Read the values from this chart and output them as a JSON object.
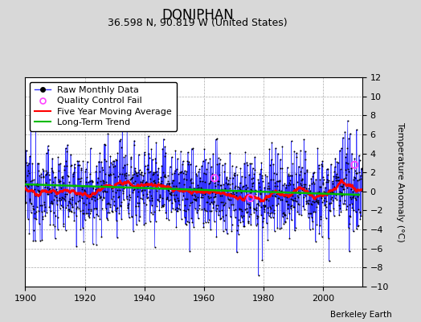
{
  "title": "DONIPHAN",
  "subtitle": "36.598 N, 90.819 W (United States)",
  "ylabel": "Temperature Anomaly (°C)",
  "attribution": "Berkeley Earth",
  "xlim": [
    1900,
    2013
  ],
  "ylim": [
    -10,
    12
  ],
  "yticks": [
    -10,
    -8,
    -6,
    -4,
    -2,
    0,
    2,
    4,
    6,
    8,
    10,
    12
  ],
  "xticks": [
    1900,
    1920,
    1940,
    1960,
    1980,
    2000
  ],
  "raw_color": "#3333ff",
  "ma_color": "#ff0000",
  "trend_color": "#00bb00",
  "qc_color": "#ff44ff",
  "bg_color": "#d8d8d8",
  "plot_bg": "#ffffff",
  "title_fontsize": 12,
  "subtitle_fontsize": 9,
  "legend_fontsize": 8,
  "tick_fontsize": 8,
  "ylabel_fontsize": 8,
  "seed": 12345,
  "n_years": 113,
  "start_year": 1900,
  "qc_fail_times": [
    1963.5,
    1975.5,
    2010.5
  ],
  "qc_fail_values": [
    1.4,
    -0.7,
    2.8
  ]
}
